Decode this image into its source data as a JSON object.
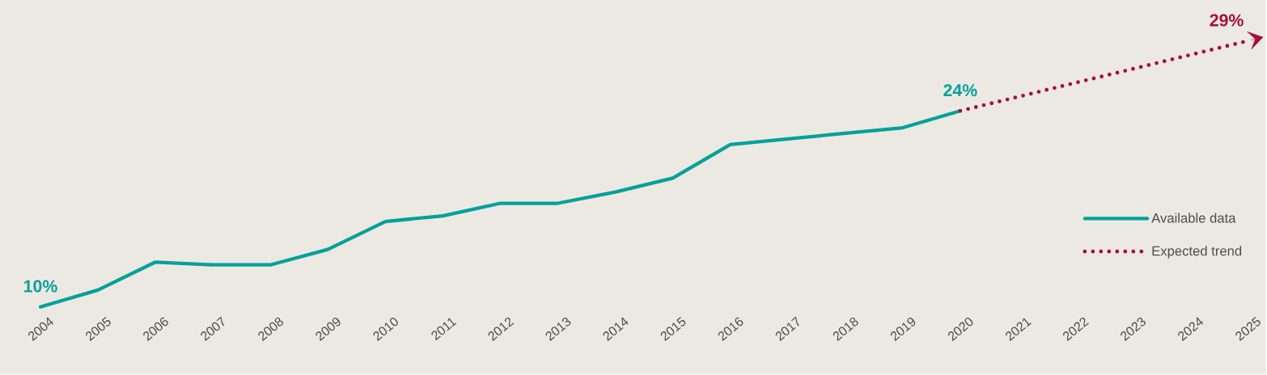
{
  "chart_data": {
    "type": "line",
    "categories": [
      "2004",
      "2005",
      "2006",
      "2007",
      "2008",
      "2009",
      "2010",
      "2011",
      "2012",
      "2013",
      "2014",
      "2015",
      "2016",
      "2017",
      "2018",
      "2019",
      "2020",
      "2021",
      "2022",
      "2023",
      "2024",
      "2025"
    ],
    "series": [
      {
        "name": "Available data",
        "color": "#00a19a",
        "line_style": "solid",
        "values": [
          10,
          11.2,
          13.2,
          13,
          13,
          14.1,
          16.1,
          16.5,
          17.4,
          17.4,
          18.2,
          19.2,
          21.6,
          22,
          22.4,
          22.8,
          24,
          null,
          null,
          null,
          null,
          null
        ],
        "value_labels": [
          "10%",
          null,
          null,
          null,
          null,
          null,
          null,
          null,
          null,
          null,
          null,
          null,
          null,
          null,
          null,
          null,
          "24%",
          null,
          null,
          null,
          null,
          null
        ]
      },
      {
        "name": "Expected trend",
        "color": "#a50f3a",
        "line_style": "dotted",
        "values": [
          null,
          null,
          null,
          null,
          null,
          null,
          null,
          null,
          null,
          null,
          null,
          null,
          null,
          null,
          null,
          null,
          24,
          25,
          26,
          27,
          28,
          29
        ],
        "value_labels": [
          null,
          null,
          null,
          null,
          null,
          null,
          null,
          null,
          null,
          null,
          null,
          null,
          null,
          null,
          null,
          null,
          null,
          null,
          null,
          null,
          null,
          "29%"
        ]
      }
    ],
    "legend": "right"
  }
}
